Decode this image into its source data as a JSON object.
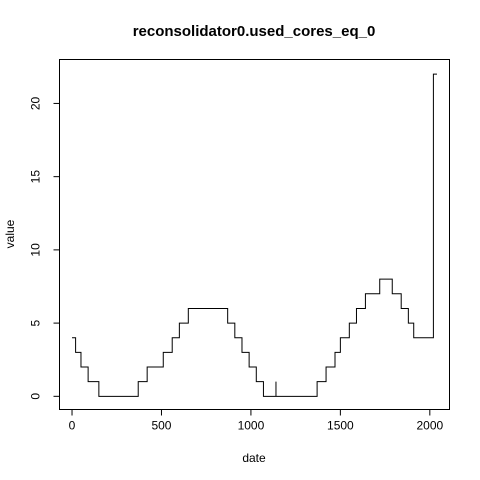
{
  "chart_data": {
    "type": "line",
    "title": "reconsolidator0.used_cores_eq_0",
    "xlabel": "date",
    "ylabel": "value",
    "xlim": [
      -70,
      2110
    ],
    "ylim": [
      -0.9,
      23.0
    ],
    "x_ticks": [
      0,
      500,
      1000,
      1500,
      2000
    ],
    "x_tick_labels": [
      "0",
      "500",
      "1000",
      "1500",
      "2000"
    ],
    "y_ticks": [
      0,
      5,
      10,
      15,
      20
    ],
    "y_tick_labels": [
      "0",
      "5",
      "10",
      "15",
      "20"
    ],
    "step": true,
    "series": [
      {
        "x": [
          0,
          20,
          50,
          90,
          150,
          370,
          420,
          510,
          560,
          600,
          650,
          870,
          910,
          950,
          990,
          1030,
          1070,
          1140,
          1140,
          1150,
          1150,
          1370,
          1420,
          1470,
          1500,
          1550,
          1590,
          1640,
          1720,
          1790,
          1840,
          1880,
          1910,
          2000,
          2020,
          2040
        ],
        "y": [
          4,
          3,
          2,
          1,
          0,
          1,
          2,
          3,
          4,
          5,
          6,
          5,
          4,
          3,
          2,
          1,
          0,
          1,
          0,
          0,
          0,
          1,
          2,
          3,
          4,
          5,
          6,
          7,
          8,
          7,
          6,
          5,
          4,
          4,
          22,
          22
        ]
      }
    ]
  }
}
